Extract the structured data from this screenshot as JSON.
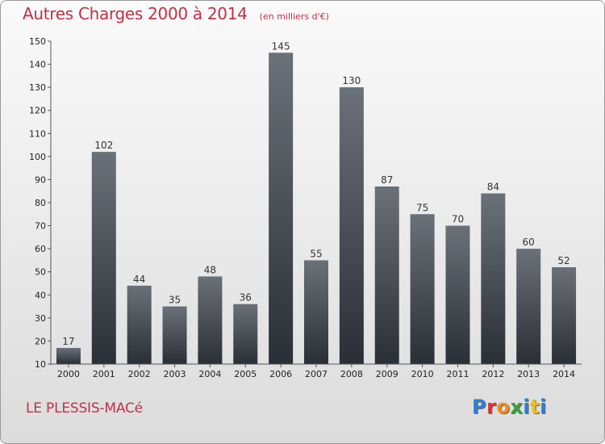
{
  "header": {
    "title": "Autres Charges 2000 à 2014",
    "subtitle": "(en milliers d'€)"
  },
  "footer": {
    "commune": "LE PLESSIS-MACé",
    "logo_text": "Proxiti",
    "logo_colors": [
      "#2f7fd0",
      "#e03030",
      "#f08c1a",
      "#3aa03a",
      "#2f7fd0",
      "#e8c020",
      "#2f7fd0"
    ]
  },
  "chart_data": {
    "type": "bar",
    "title": "Autres Charges 2000 à 2014",
    "subtitle": "(en milliers d'€)",
    "xlabel": "",
    "ylabel": "",
    "categories": [
      "2000",
      "2001",
      "2002",
      "2003",
      "2004",
      "2005",
      "2006",
      "2007",
      "2008",
      "2009",
      "2010",
      "2011",
      "2012",
      "2013",
      "2014"
    ],
    "values": [
      17,
      102,
      44,
      35,
      48,
      36,
      145,
      55,
      130,
      87,
      75,
      70,
      84,
      60,
      52
    ],
    "ylim": [
      10,
      150
    ],
    "yticks": [
      10,
      20,
      30,
      40,
      50,
      60,
      70,
      80,
      90,
      100,
      110,
      120,
      130,
      140,
      150
    ],
    "grid": false,
    "colors": {
      "bar_top": "#6b7178",
      "bar_bottom": "#2a2f36",
      "text": "#c03048"
    }
  }
}
